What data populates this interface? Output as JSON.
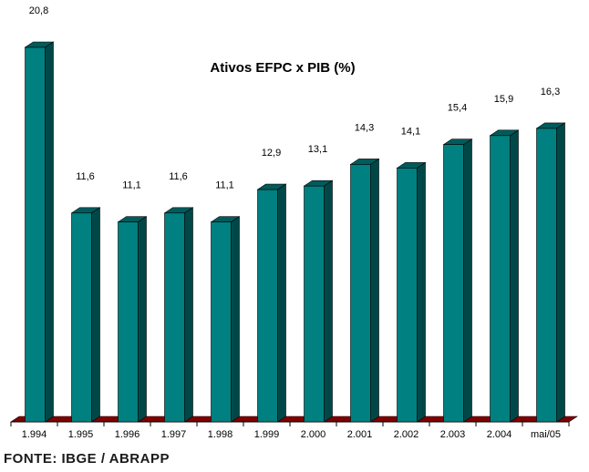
{
  "chart_data": {
    "type": "bar",
    "title": "Ativos EFPC x PIB (%)",
    "xlabel": "",
    "ylabel": "",
    "categories": [
      "1.994",
      "1.995",
      "1.996",
      "1.997",
      "1.998",
      "1.999",
      "2.000",
      "2.001",
      "2.002",
      "2.003",
      "2.004",
      "mai/05"
    ],
    "values": [
      20.8,
      11.6,
      11.1,
      11.6,
      11.1,
      12.9,
      13.1,
      14.3,
      14.1,
      15.4,
      15.9,
      16.3
    ],
    "value_labels": [
      "20,8",
      "11,6",
      "11,1",
      "11,6",
      "11,1",
      "12,9",
      "13,1",
      "14,3",
      "14,1",
      "15,4",
      "15,9",
      "16,3"
    ],
    "ylim": [
      0,
      20.8
    ],
    "grid": false,
    "legend": "none",
    "colors": {
      "bar_front": "#008080",
      "bar_side": "#004848",
      "bar_top": "#005c5c",
      "floor": "#800000",
      "outline": "#000000"
    }
  },
  "source_label": "FONTE: IBGE / ABRAPP"
}
